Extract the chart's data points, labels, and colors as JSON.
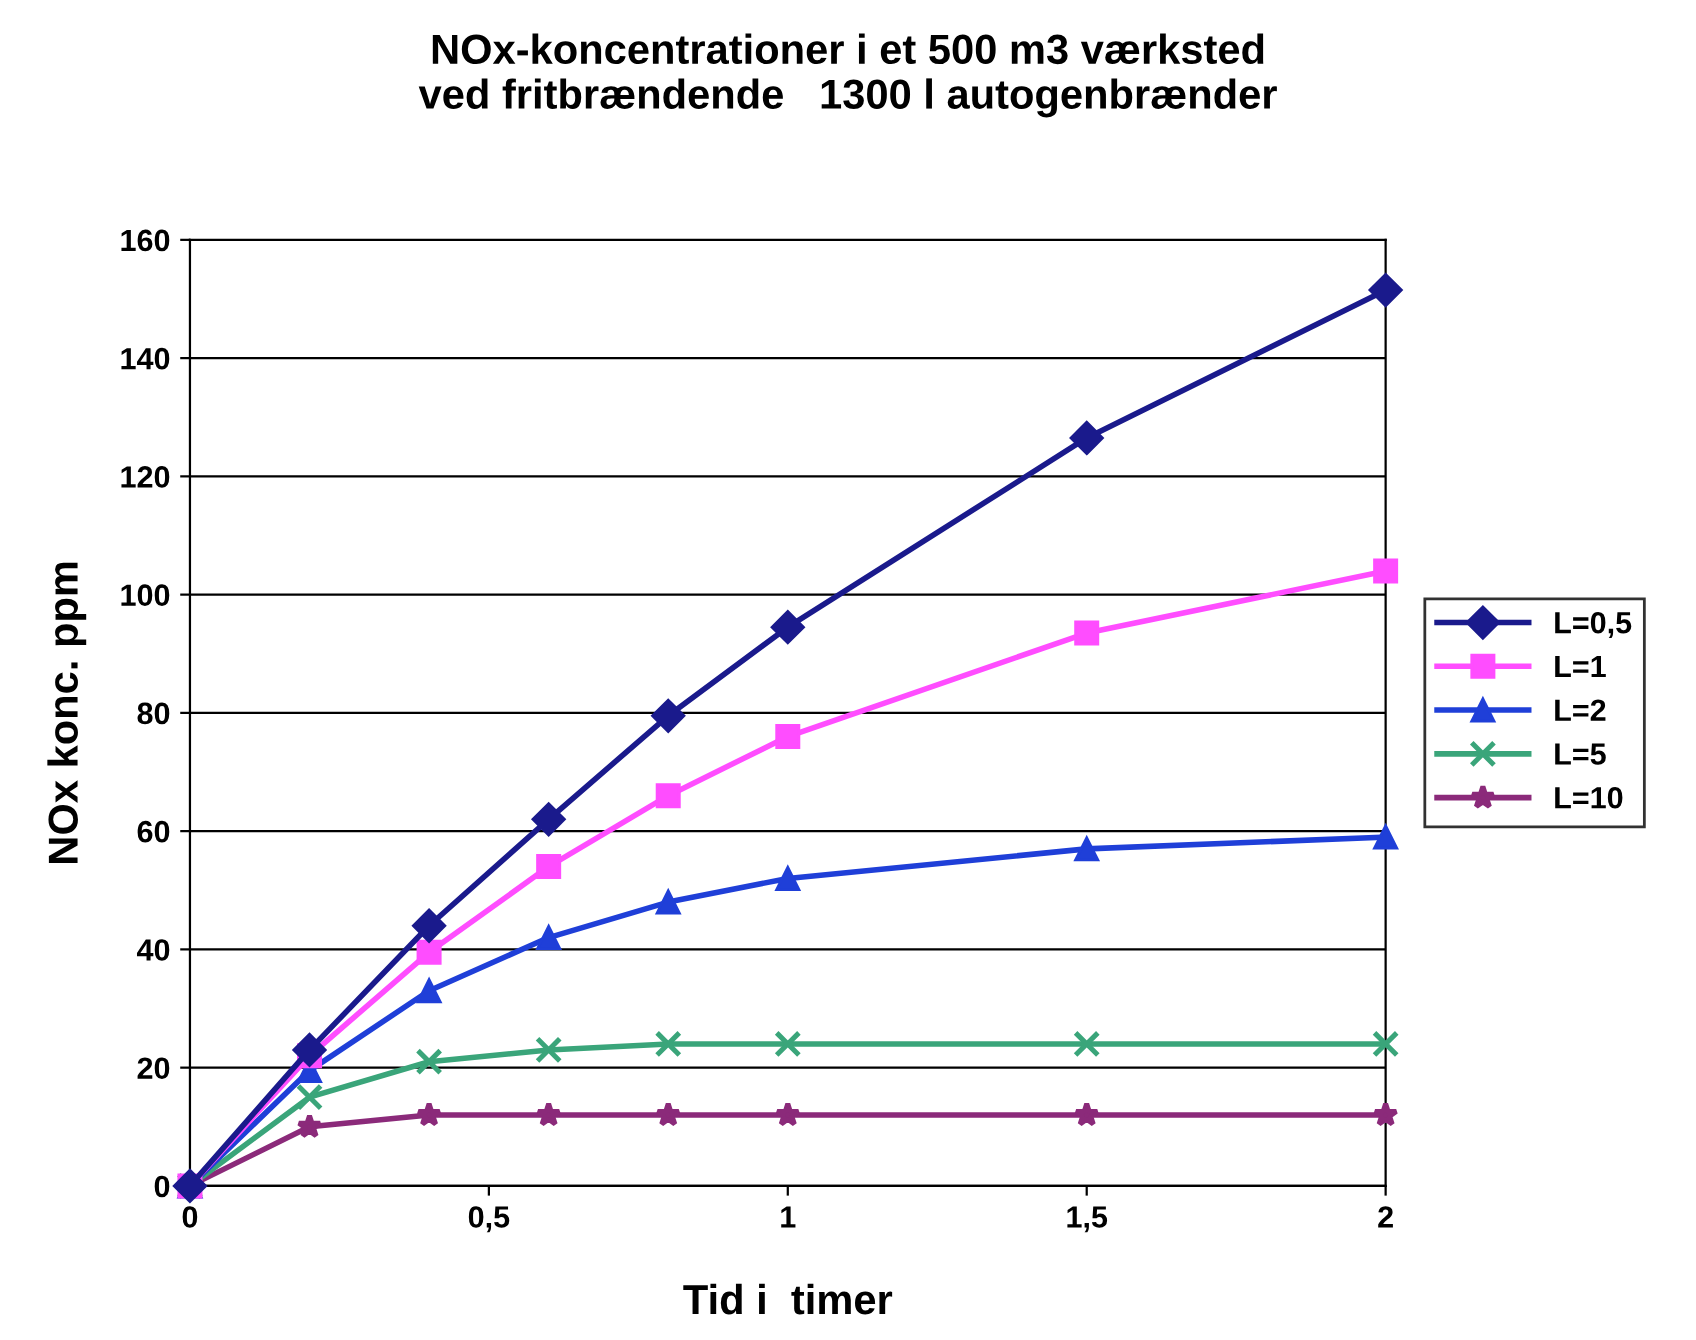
{
  "chart_data": {
    "type": "line",
    "title": "NOx-koncentrationer i et 500 m3 værksted\nved fritbrændende   1300 l autogenbrænder",
    "xlabel": "Tid i  timer",
    "ylabel": "NOx konc. ppm",
    "x": [
      0,
      0.2,
      0.4,
      0.6,
      0.8,
      1,
      1.5,
      2
    ],
    "series": [
      {
        "name": "L=0,5",
        "color": "#1a1a8c",
        "marker": "diamond",
        "values": [
          0,
          23,
          44,
          62,
          79.5,
          94.5,
          126.5,
          151.5
        ]
      },
      {
        "name": "L=1",
        "color": "#ff4dff",
        "marker": "square",
        "values": [
          0,
          22,
          39.5,
          54,
          66,
          76,
          93.5,
          104
        ]
      },
      {
        "name": "L=2",
        "color": "#1f3fd8",
        "marker": "triangle",
        "values": [
          0,
          19.5,
          33,
          42,
          48,
          52,
          57,
          59
        ]
      },
      {
        "name": "L=5",
        "color": "#3aa57a",
        "marker": "cross",
        "values": [
          0,
          15,
          21,
          23,
          24,
          24,
          24,
          24
        ]
      },
      {
        "name": "L=10",
        "color": "#8b2a7a",
        "marker": "star",
        "values": [
          0,
          10,
          12,
          12,
          12,
          12,
          12,
          12
        ]
      }
    ],
    "xlim": [
      0,
      2
    ],
    "xticks": [
      0,
      {
        "value": 0.5,
        "label": "0,5"
      },
      1,
      {
        "value": 1.5,
        "label": "1,5"
      },
      2
    ],
    "ylim": [
      0,
      160
    ],
    "yticks": [
      0,
      20,
      40,
      60,
      80,
      100,
      120,
      140,
      160
    ],
    "grid": "y",
    "legend": "right",
    "line_style": "solid"
  }
}
